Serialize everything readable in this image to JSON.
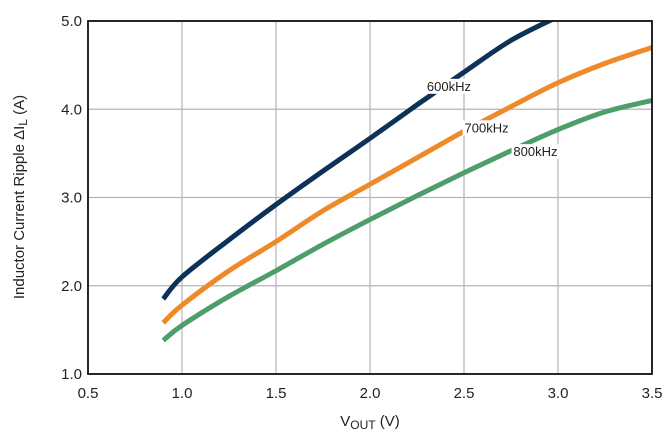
{
  "chart_data": {
    "type": "line",
    "xlabel_main": "V",
    "xlabel_sub": "OUT",
    "xlabel_unit": " (V)",
    "ylabel_main": "Inductor Current Ripple  ΔI",
    "ylabel_sub": "L",
    "ylabel_unit": " (A)",
    "xlim": [
      0.5,
      3.5
    ],
    "ylim": [
      1.0,
      5.0
    ],
    "x_ticks": [
      0.5,
      1.0,
      1.5,
      2.0,
      2.5,
      3.0,
      3.5
    ],
    "x_tick_labels": [
      "0.5",
      "1.0",
      "1.5",
      "2.0",
      "2.5",
      "3.0",
      "3.5"
    ],
    "y_ticks": [
      1.0,
      2.0,
      3.0,
      4.0,
      5.0
    ],
    "y_tick_labels": [
      "1.0",
      "2.0",
      "3.0",
      "4.0",
      "5.0"
    ],
    "grid": true,
    "series": [
      {
        "name": "600kHz",
        "color": "#0d3257",
        "x": [
          0.9,
          1.0,
          1.25,
          1.5,
          1.75,
          2.0,
          2.25,
          2.5,
          2.75,
          3.0
        ],
        "values": [
          1.85,
          2.1,
          2.52,
          2.92,
          3.3,
          3.67,
          4.05,
          4.42,
          4.78,
          5.05
        ]
      },
      {
        "name": "700kHz",
        "color": "#ef8a2b",
        "x": [
          0.9,
          1.0,
          1.25,
          1.5,
          1.75,
          2.0,
          2.25,
          2.5,
          2.75,
          3.0,
          3.25,
          3.5
        ],
        "values": [
          1.58,
          1.78,
          2.17,
          2.5,
          2.85,
          3.15,
          3.45,
          3.75,
          4.03,
          4.3,
          4.52,
          4.7
        ]
      },
      {
        "name": "800kHz",
        "color": "#4e9e6b",
        "x": [
          0.9,
          1.0,
          1.25,
          1.5,
          1.75,
          2.0,
          2.25,
          2.5,
          2.75,
          3.0,
          3.25,
          3.5
        ],
        "values": [
          1.38,
          1.55,
          1.88,
          2.17,
          2.47,
          2.75,
          3.02,
          3.28,
          3.53,
          3.77,
          3.97,
          4.1
        ]
      }
    ],
    "annotations": [
      {
        "text": "600kHz",
        "x": 2.42,
        "y": 4.22
      },
      {
        "text": "700kHz",
        "x": 2.62,
        "y": 3.75
      },
      {
        "text": "800kHz",
        "x": 2.88,
        "y": 3.48
      }
    ]
  }
}
